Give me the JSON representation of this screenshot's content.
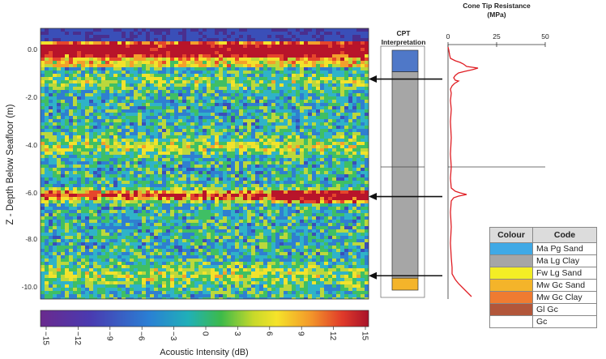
{
  "seismic": {
    "ylabel": "Z - Depth Below Seafloor (m)",
    "depth_ticks": [
      "0.0",
      "-2.0",
      "-4.0",
      "-6.0",
      "-8.0",
      "-10.0"
    ]
  },
  "colorbar": {
    "label": "Acoustic Intensity (dB)",
    "ticks": [
      "−15",
      "−12",
      "−9",
      "−6",
      "−3",
      "0",
      "3",
      "6",
      "9",
      "12",
      "15"
    ],
    "range_db": [
      -15,
      15
    ]
  },
  "cpt": {
    "title_line1": "CPT",
    "title_line2": "Interpretation",
    "layers": [
      {
        "code": "Ma Pg Sand",
        "top_m": 0.0,
        "bottom_m": -0.9
      },
      {
        "code": "Ma Lg Clay",
        "top_m": -0.9,
        "bottom_m": -9.5
      },
      {
        "code": "Mw Gc Sand",
        "top_m": -9.5,
        "bottom_m": -10.0
      }
    ]
  },
  "cone": {
    "title_line1": "Cone Tip Resistance",
    "title_line2": "(MPa)",
    "ticks": [
      "0",
      "25",
      "50"
    ],
    "range_mpa": [
      0,
      50
    ]
  },
  "arrows_depth_m": [
    -1.2,
    -6.1,
    -9.4
  ],
  "legend": {
    "header_colour": "Colour",
    "header_code": "Code",
    "rows": [
      {
        "code": "Ma Pg Sand",
        "color": "#3fa9e6"
      },
      {
        "code": "Ma Lg Clay",
        "color": "#a6a6a6"
      },
      {
        "code": "Fw Lg Sand",
        "color": "#f3ee25"
      },
      {
        "code": "Mw Gc Sand",
        "color": "#f4b42a"
      },
      {
        "code": "Mw Gc Clay",
        "color": "#ef7b31"
      },
      {
        "code": "Gl Gc",
        "color": "#b2563a"
      },
      {
        "code": "Gc",
        "color": "#ffffff"
      }
    ]
  }
}
